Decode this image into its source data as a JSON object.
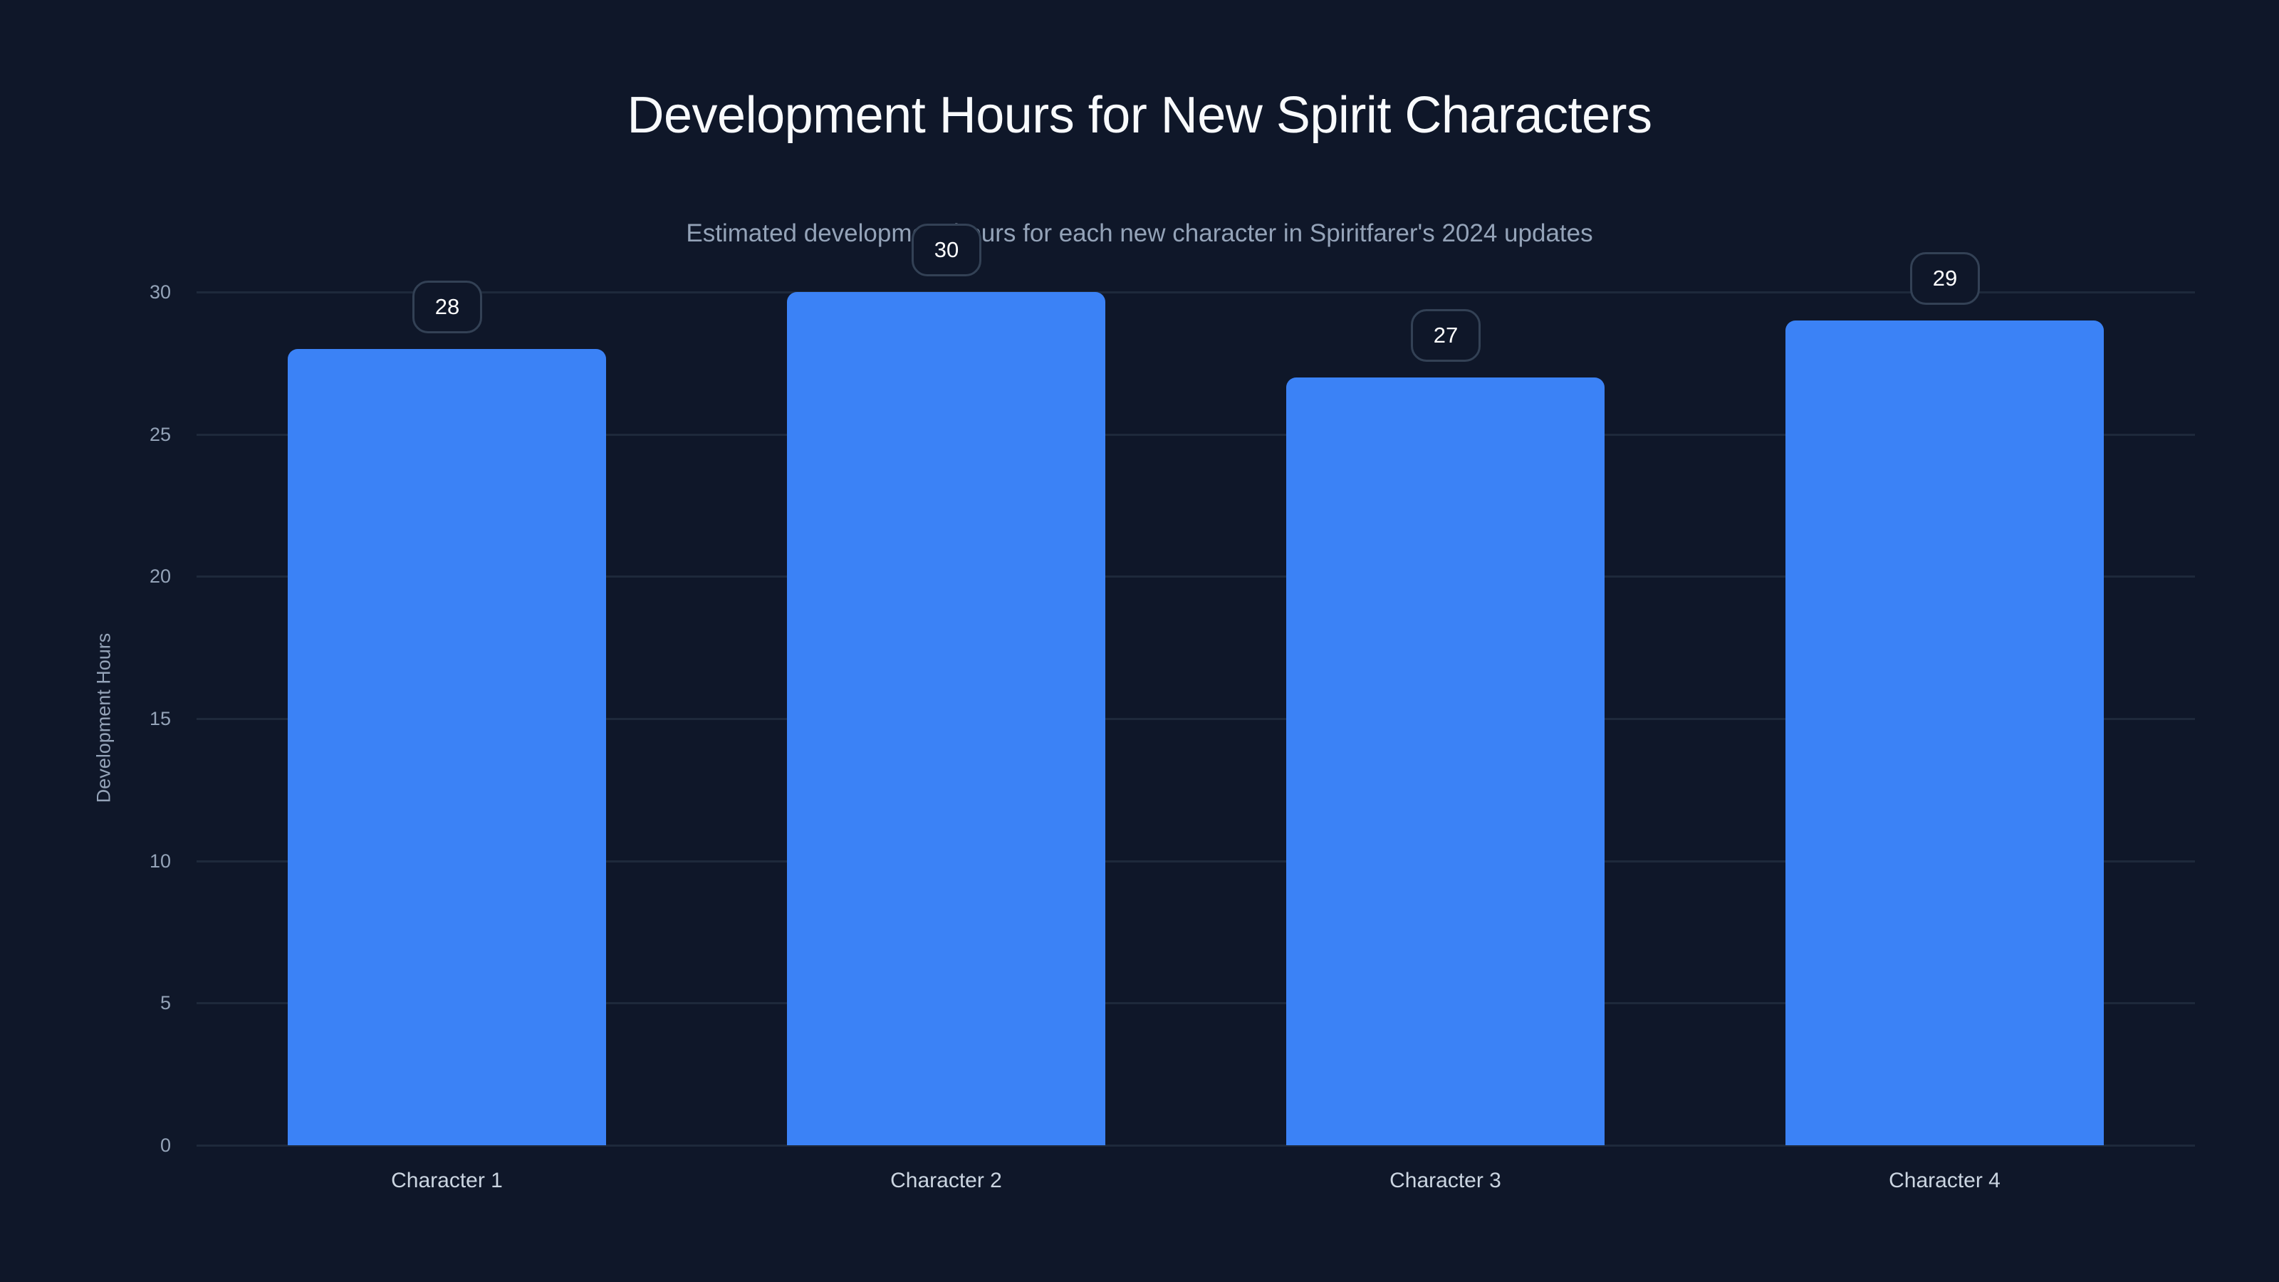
{
  "chart_data": {
    "type": "bar",
    "title": "Development Hours for New Spirit Characters",
    "subtitle": "Estimated development hours for each new character in Spiritfarer's 2024 updates",
    "xlabel": "",
    "ylabel": "Development Hours",
    "categories": [
      "Character 1",
      "Character 2",
      "Character 3",
      "Character 4"
    ],
    "values": [
      28,
      30,
      27,
      29
    ],
    "ylim": [
      0,
      30
    ],
    "yticks": [
      "0",
      "5",
      "10",
      "15",
      "20",
      "25",
      "30"
    ],
    "grid": true,
    "legend": null,
    "data_labels": [
      "28",
      "30",
      "27",
      "29"
    ],
    "colors": {
      "background": "#0f1729",
      "bar": "#3b82f6",
      "grid": "#1e293b",
      "title": "#f8fafc",
      "subtitle": "#94a3b8",
      "tick_label": "#94a3b8",
      "category_label": "#cbd5e1",
      "data_label_border": "#334155",
      "data_label_text": "#ffffff"
    }
  }
}
